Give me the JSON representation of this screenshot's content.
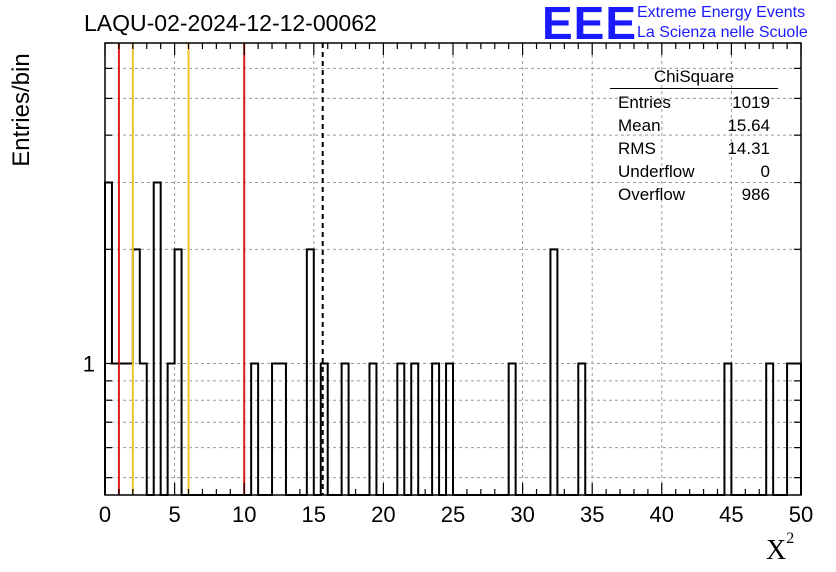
{
  "chart_data": {
    "type": "bar",
    "title": "LAQU-02-2024-12-12-00062",
    "ylabel": "Entries/bin",
    "xlabel": "X",
    "xlabel_superscript": "2",
    "xlim": [
      0,
      50
    ],
    "ylim_log": [
      0.45,
      7
    ],
    "y_scale": "log",
    "grid": true,
    "bin_width": 0.5,
    "xticks": [
      "0",
      "5",
      "10",
      "15",
      "20",
      "25",
      "30",
      "35",
      "40",
      "45",
      "50"
    ],
    "yticks": [
      "1"
    ],
    "bins": [
      {
        "x": 0.0,
        "y": 3
      },
      {
        "x": 0.5,
        "y": 1
      },
      {
        "x": 1.0,
        "y": 1
      },
      {
        "x": 1.5,
        "y": 1
      },
      {
        "x": 2.0,
        "y": 2
      },
      {
        "x": 2.5,
        "y": 1
      },
      {
        "x": 3.5,
        "y": 3
      },
      {
        "x": 4.5,
        "y": 1
      },
      {
        "x": 5.0,
        "y": 2
      },
      {
        "x": 10.5,
        "y": 1
      },
      {
        "x": 12.0,
        "y": 1
      },
      {
        "x": 12.5,
        "y": 1
      },
      {
        "x": 14.5,
        "y": 2
      },
      {
        "x": 15.5,
        "y": 1
      },
      {
        "x": 17.0,
        "y": 1
      },
      {
        "x": 19.0,
        "y": 1
      },
      {
        "x": 21.0,
        "y": 1
      },
      {
        "x": 22.0,
        "y": 1
      },
      {
        "x": 23.5,
        "y": 1
      },
      {
        "x": 24.5,
        "y": 1
      },
      {
        "x": 29.0,
        "y": 1
      },
      {
        "x": 32.0,
        "y": 2
      },
      {
        "x": 34.0,
        "y": 1
      },
      {
        "x": 44.5,
        "y": 1
      },
      {
        "x": 47.5,
        "y": 1
      },
      {
        "x": 49.0,
        "y": 1
      },
      {
        "x": 49.5,
        "y": 1
      }
    ],
    "vertical_lines": [
      {
        "x": 1.0,
        "color": "#e0191b",
        "style": "solid"
      },
      {
        "x": 2.0,
        "color": "#f2c12e",
        "style": "solid"
      },
      {
        "x": 6.0,
        "color": "#f2c12e",
        "style": "solid"
      },
      {
        "x": 10.0,
        "color": "#e0191b",
        "style": "solid"
      },
      {
        "x": 15.64,
        "color": "#000000",
        "style": "dashed"
      }
    ],
    "stats": {
      "title": "ChiSquare",
      "rows": [
        {
          "label": "Entries",
          "value": "1019"
        },
        {
          "label": "Mean",
          "value": "15.64"
        },
        {
          "label": "RMS",
          "value": "14.31"
        },
        {
          "label": "Underflow",
          "value": "0"
        },
        {
          "label": "Overflow",
          "value": "986"
        }
      ]
    }
  },
  "logo": {
    "mark": "EEE",
    "line1": "Extreme Energy Events",
    "line2": "La Scienza nelle Scuole",
    "color": "#1a1aff"
  }
}
